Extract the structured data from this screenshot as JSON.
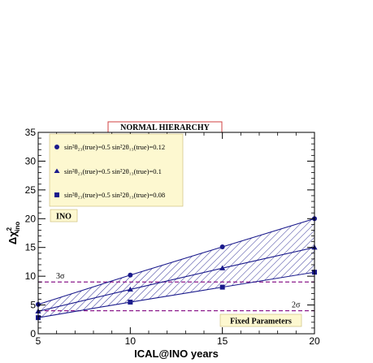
{
  "chart_data": {
    "type": "line",
    "title": "NORMAL HIERARCHY",
    "xlabel": "ICAL@INO years",
    "ylabel": "Δχ²_ino",
    "ylabel_main": "Δχ",
    "ylabel_sup": "2",
    "ylabel_sub": "ino",
    "x": [
      5,
      10,
      15,
      20
    ],
    "xlim": [
      5,
      20
    ],
    "ylim": [
      0,
      35
    ],
    "xticks": [
      5,
      10,
      15,
      20
    ],
    "yticks": [
      0,
      5,
      10,
      15,
      20,
      25,
      30,
      35
    ],
    "series": [
      {
        "name": "sin²θ₂₃(true)=0.5   sin²2θ₁₃(true)=0.12",
        "marker": "circle",
        "values": [
          5.1,
          10.2,
          15.1,
          20.0
        ]
      },
      {
        "name": "sin²θ₂₃(true)=0.5   sin²2θ₁₃(true)=0.1",
        "marker": "triangle",
        "values": [
          3.9,
          7.7,
          11.4,
          15.0
        ]
      },
      {
        "name": "sin²θ₂₃(true)=0.5   sin²2θ₁₃(true)=0.08",
        "marker": "square",
        "values": [
          2.8,
          5.5,
          8.1,
          10.7
        ]
      }
    ],
    "reference_lines": [
      {
        "label": "3σ",
        "y": 9.0
      },
      {
        "label": "2σ",
        "y": 4.0
      }
    ],
    "annotations": {
      "experiment": "INO",
      "fixed": "Fixed Parameters"
    },
    "legend_placement": "top-left",
    "grid": false,
    "colors": {
      "series": "#1a1a8c",
      "reference": "#8b1a8b",
      "legend_bg": "#fdf8d0",
      "title_border": "#d04040"
    }
  }
}
